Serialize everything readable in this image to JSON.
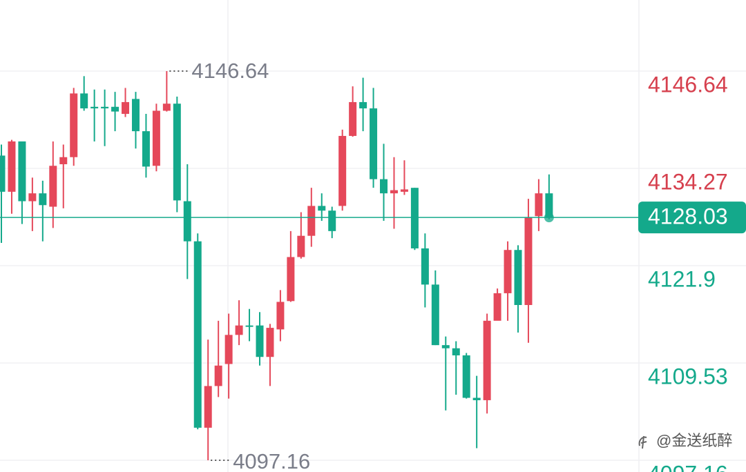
{
  "chart_data": {
    "type": "candlestick",
    "up_color": "#e5485a",
    "down_color": "#14a98b",
    "grid": true,
    "ylim": [
      4095.67,
      4155.68
    ],
    "yticks": [
      4146.64,
      4134.27,
      4121.9,
      4109.53,
      4097.16
    ],
    "open": [
      4135.9,
      4131.3,
      4137.7,
      4130.1,
      4131.1,
      4129.4,
      4134.8,
      4135.7,
      4143.8,
      4142.1,
      4142.1,
      4142.1,
      4141.2,
      4143.1,
      4139.0,
      4134.6,
      4141.6,
      4142.5,
      4130.1,
      4125.0,
      4101.3,
      4106.6,
      4109.4,
      4113.1,
      4114.3,
      4114.3,
      4110.3,
      4113.8,
      4117.4,
      4123.0,
      4125.7,
      4129.5,
      4128.9,
      4129.5,
      4138.4,
      4142.7,
      4141.9,
      4132.9,
      4131.1,
      4131.3,
      4131.8,
      4124.1,
      4119.5,
      4111.8,
      4111.4,
      4110.5,
      4105.1,
      4104.8,
      4114.9,
      4118.4,
      4123.9,
      4116.9,
      4128.2,
      4131.1
    ],
    "high": [
      4137.3,
      4137.9,
      4137.7,
      4133.1,
      4132.7,
      4137.7,
      4137.3,
      4144.5,
      4146.0,
      4144.3,
      4144.3,
      4144.0,
      4144.5,
      4144.0,
      4141.2,
      4142.5,
      4146.64,
      4143.4,
      4134.8,
      4126.0,
      4112.5,
      4114.9,
      4115.8,
      4117.5,
      4116.4,
      4116.0,
      4114.5,
      4118.8,
      4126.3,
      4128.7,
      4131.8,
      4131.1,
      4129.4,
      4139.2,
      4144.7,
      4145.8,
      4144.5,
      4137.4,
      4135.7,
      4135.3,
      4131.8,
      4126.0,
      4121.3,
      4112.9,
      4112.3,
      4110.8,
      4107.9,
      4115.8,
      4119.0,
      4125.0,
      4124.5,
      4130.4,
      4132.9,
      4133.5
    ],
    "low": [
      4124.8,
      4128.5,
      4127.2,
      4126.3,
      4125.0,
      4126.7,
      4129.2,
      4134.6,
      4141.6,
      4137.7,
      4137.1,
      4139.0,
      4140.8,
      4136.8,
      4133.1,
      4133.9,
      4141.5,
      4128.7,
      4120.2,
      4101.1,
      4097.16,
      4105.2,
      4105.0,
      4111.8,
      4112.3,
      4109.2,
      4106.6,
      4112.3,
      4117.3,
      4122.8,
      4124.3,
      4127.6,
      4125.4,
      4128.9,
      4138.3,
      4139.0,
      4131.8,
      4127.6,
      4126.6,
      4130.9,
      4123.9,
      4116.6,
      4111.8,
      4103.5,
      4105.5,
      4105.0,
      4098.7,
      4103.1,
      4115.2,
      4114.9,
      4113.4,
      4112.1,
      4126.3,
      4127.8
    ],
    "close": [
      4131.3,
      4137.7,
      4130.1,
      4131.1,
      4129.6,
      4134.6,
      4135.7,
      4143.8,
      4141.9,
      4141.9,
      4141.9,
      4141.5,
      4142.7,
      4139.0,
      4134.5,
      4141.6,
      4142.5,
      4130.2,
      4125.0,
      4101.3,
      4106.6,
      4109.2,
      4113.1,
      4114.3,
      4114.2,
      4110.3,
      4114.0,
      4117.3,
      4123.0,
      4125.7,
      4129.5,
      4128.9,
      4126.3,
      4138.4,
      4142.7,
      4141.9,
      4132.9,
      4131.1,
      4131.5,
      4131.6,
      4124.1,
      4119.5,
      4111.8,
      4111.4,
      4110.5,
      4105.1,
      4104.8,
      4114.9,
      4118.4,
      4123.9,
      4116.9,
      4128.0,
      4131.1,
      4128.03
    ],
    "watermark": "@金送纸醉"
  }
}
